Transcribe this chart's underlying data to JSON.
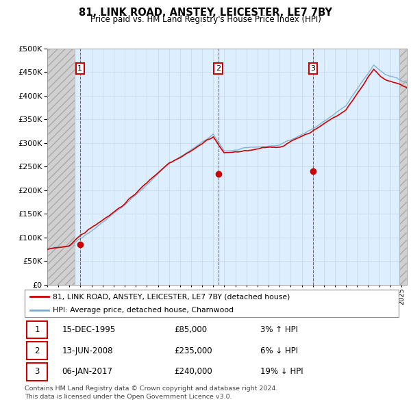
{
  "title": "81, LINK ROAD, ANSTEY, LEICESTER, LE7 7BY",
  "subtitle": "Price paid vs. HM Land Registry's House Price Index (HPI)",
  "legend_line1": "81, LINK ROAD, ANSTEY, LEICESTER, LE7 7BY (detached house)",
  "legend_line2": "HPI: Average price, detached house, Charnwood",
  "footer1": "Contains HM Land Registry data © Crown copyright and database right 2024.",
  "footer2": "This data is licensed under the Open Government Licence v3.0.",
  "transactions": [
    {
      "num": 1,
      "date": "15-DEC-1995",
      "price": 85000,
      "hpi_pct": "3%",
      "hpi_dir": "↑",
      "year_x": 1995.96
    },
    {
      "num": 2,
      "date": "13-JUN-2008",
      "price": 235000,
      "hpi_pct": "6%",
      "hpi_dir": "↓",
      "year_x": 2008.45
    },
    {
      "num": 3,
      "date": "06-JAN-2017",
      "price": 240000,
      "hpi_pct": "19%",
      "hpi_dir": "↓",
      "year_x": 2017.03
    }
  ],
  "red_line_color": "#cc0000",
  "blue_line_color": "#7aadce",
  "grid_color": "#c8d8e8",
  "ylim": [
    0,
    500000
  ],
  "yticks": [
    0,
    50000,
    100000,
    150000,
    200000,
    250000,
    300000,
    350000,
    400000,
    450000,
    500000
  ],
  "xlim_start": 1993.0,
  "xlim_end": 2025.5,
  "plot_bg_color": "#ddeeff",
  "hatch_bg_color": "#d0d0d0"
}
